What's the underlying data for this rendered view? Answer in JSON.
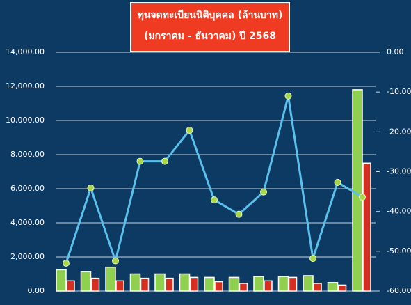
{
  "chart_data": {
    "type": "bar_line",
    "title_lines": [
      "ทุนจดทะเบียนนิติบุคคล (ล้านบาท)",
      "(มกราคม - ธันวาคม) ปี 2568"
    ],
    "categories": [
      null,
      null,
      null,
      null,
      null,
      null,
      null,
      null,
      null,
      null,
      null,
      null,
      null
    ],
    "series": [
      {
        "type": "bar",
        "color": "#8fd14f",
        "values": [
          1250,
          1150,
          1400,
          1000,
          1000,
          1000,
          800,
          800,
          850,
          850,
          900,
          500,
          11800
        ]
      },
      {
        "type": "bar",
        "color": "#d62f1f",
        "values": [
          600,
          750,
          600,
          750,
          750,
          800,
          550,
          450,
          600,
          800,
          450,
          350,
          7500
        ]
      },
      {
        "type": "line",
        "axis": "y2",
        "color": "#5bc0eb",
        "marker_color": "#a8d84a",
        "values": [
          -53.0,
          -34.1,
          -52.4,
          -27.4,
          -27.4,
          -19.6,
          -37.1,
          -40.7,
          -35.1,
          -11.0,
          -51.8,
          -32.7,
          -36.4
        ]
      }
    ],
    "ylim": [
      0,
      14000
    ],
    "yticks": [
      {
        "value": 0,
        "label": "0.00"
      },
      {
        "value": 2000,
        "label": "2,000.00"
      },
      {
        "value": 4000,
        "label": "4,000.00"
      },
      {
        "value": 6000,
        "label": "6,000.00"
      },
      {
        "value": 8000,
        "label": "8,000.00"
      },
      {
        "value": 10000,
        "label": "10,000.00"
      },
      {
        "value": 12000,
        "label": "12,000.00"
      },
      {
        "value": 14000,
        "label": "14,000.00"
      }
    ],
    "y2lim": [
      -60,
      0
    ],
    "y2ticks": [
      {
        "value": 0,
        "label": "0.00"
      },
      {
        "value": -10,
        "label": "-10.00"
      },
      {
        "value": -20,
        "label": "-20.00"
      },
      {
        "value": -30,
        "label": "-30.00"
      },
      {
        "value": -40,
        "label": "-40.00"
      },
      {
        "value": -50,
        "label": "-50.00"
      },
      {
        "value": -60,
        "label": "-60.00"
      }
    ],
    "grid": true
  }
}
